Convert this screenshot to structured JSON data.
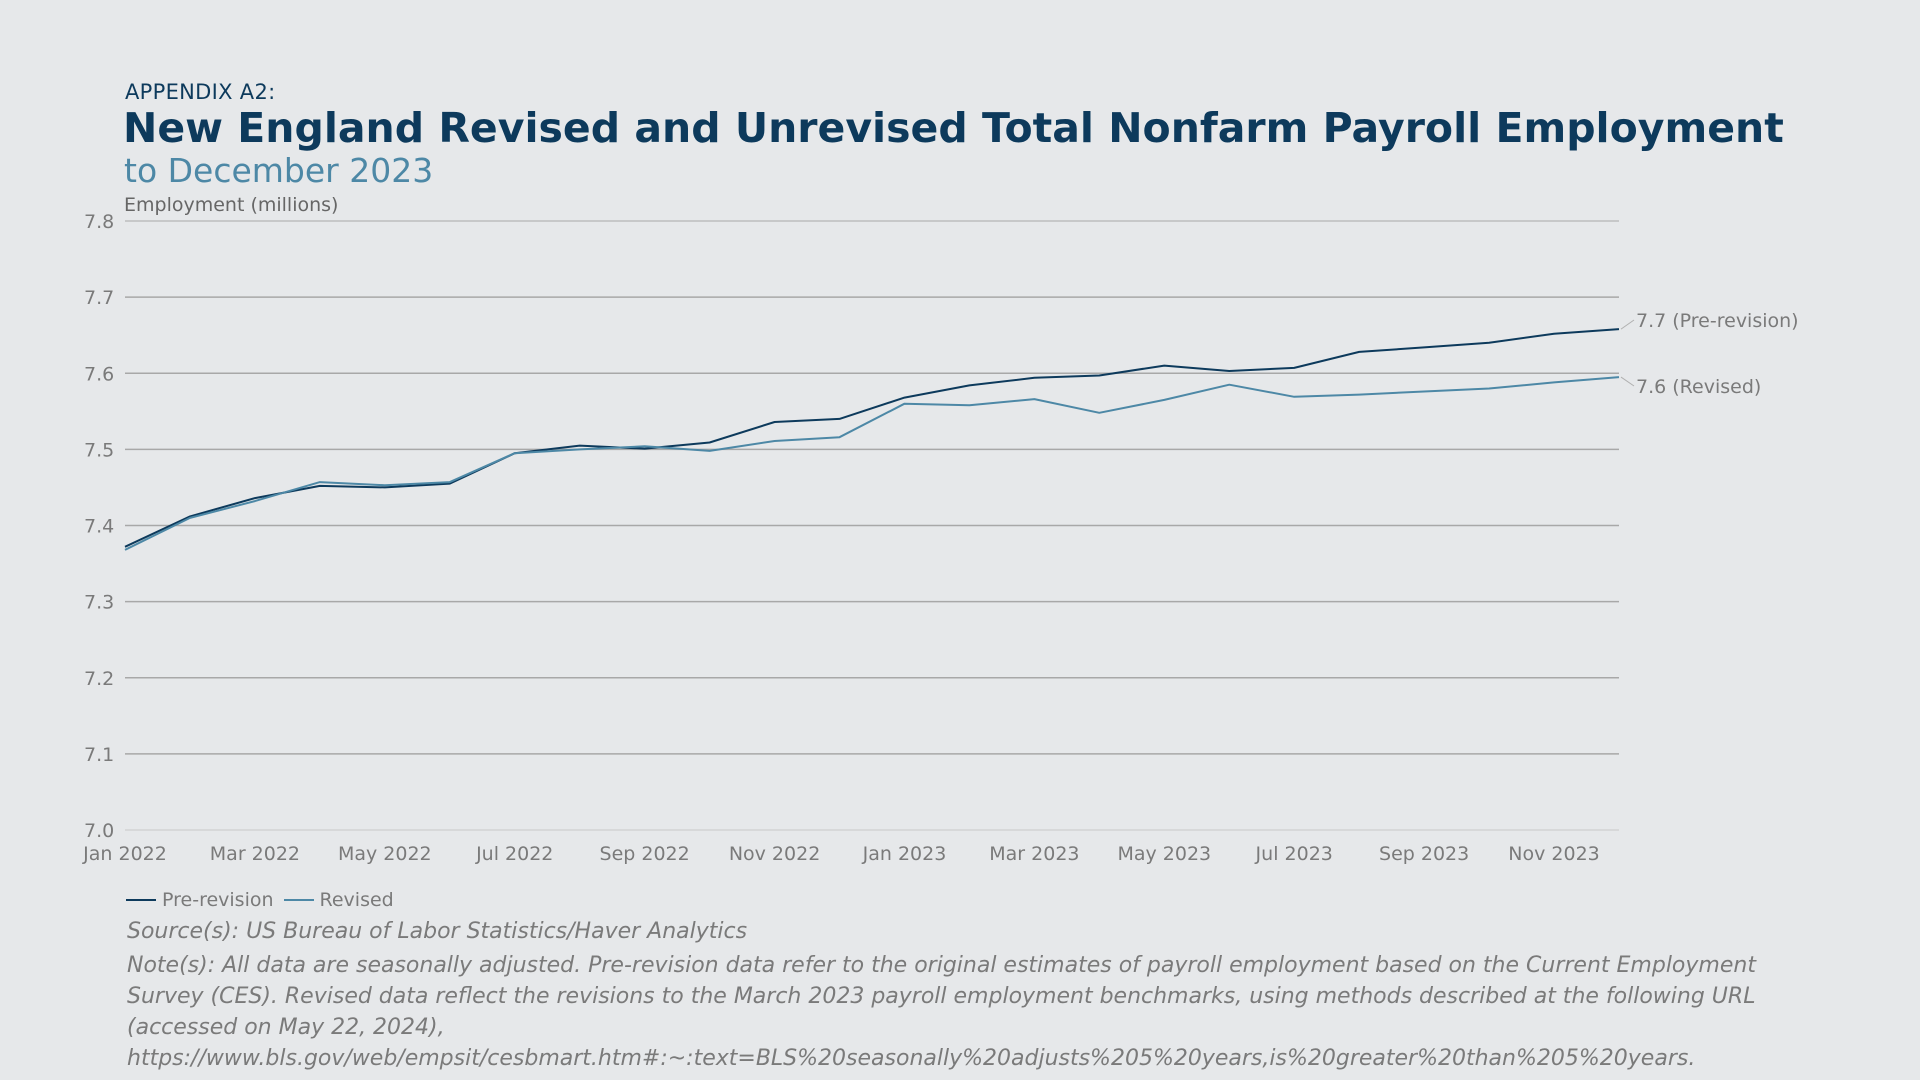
{
  "header": {
    "kicker": "APPENDIX A2:",
    "title": "New England Revised and Unrevised Total Nonfarm Payroll Employment",
    "subtitle": "to December 2023"
  },
  "colors": {
    "background": "#e6e8ea",
    "title": "#0d3a5c",
    "subtitle": "#4d88a6",
    "pre_revision": "#0d3a5c",
    "revised": "#4d88a6",
    "gridline": "#a8a8a8",
    "muted_text": "#7a7a7a"
  },
  "chart_data": {
    "type": "line",
    "title": "New England Revised and Unrevised Total Nonfarm Payroll Employment",
    "subtitle": "to December 2023",
    "ylabel": "Employment (millions)",
    "xlabel": "",
    "ylim": [
      7.0,
      7.8
    ],
    "yticks": [
      "7.0",
      "7.1",
      "7.2",
      "7.3",
      "7.4",
      "7.5",
      "7.6",
      "7.7",
      "7.8"
    ],
    "x": [
      "Jan 2022",
      "Feb 2022",
      "Mar 2022",
      "Apr 2022",
      "May 2022",
      "Jun 2022",
      "Jul 2022",
      "Aug 2022",
      "Sep 2022",
      "Oct 2022",
      "Nov 2022",
      "Dec 2022",
      "Jan 2023",
      "Feb 2023",
      "Mar 2023",
      "Apr 2023",
      "May 2023",
      "Jun 2023",
      "Jul 2023",
      "Aug 2023",
      "Sep 2023",
      "Oct 2023",
      "Nov 2023",
      "Dec 2023"
    ],
    "xticks": [
      "Jan 2022",
      "Mar 2022",
      "May 2022",
      "Jul 2022",
      "Sep 2022",
      "Nov 2022",
      "Jan 2023",
      "Mar 2023",
      "May 2023",
      "Jul 2023",
      "Sep 2023",
      "Nov 2023"
    ],
    "grid": true,
    "legend_position": "bottom-left",
    "series": [
      {
        "name": "Pre-revision",
        "color": "#0d3a5c",
        "values": [
          7.372,
          7.412,
          7.436,
          7.452,
          7.45,
          7.455,
          7.495,
          7.505,
          7.501,
          7.509,
          7.536,
          7.54,
          7.568,
          7.584,
          7.594,
          7.597,
          7.61,
          7.603,
          7.607,
          7.628,
          7.634,
          7.64,
          7.652,
          7.658
        ],
        "end_label": "7.7 (Pre-revision)"
      },
      {
        "name": "Revised",
        "color": "#4d88a6",
        "values": [
          7.368,
          7.41,
          7.432,
          7.457,
          7.453,
          7.457,
          7.495,
          7.5,
          7.504,
          7.498,
          7.511,
          7.516,
          7.56,
          7.558,
          7.566,
          7.548,
          7.565,
          7.585,
          7.569,
          7.572,
          7.576,
          7.58,
          7.588,
          7.595
        ],
        "end_label": "7.6 (Revised)"
      }
    ]
  },
  "legend": {
    "items": [
      {
        "label": "Pre-revision",
        "color": "#0d3a5c"
      },
      {
        "label": "Revised",
        "color": "#4d88a6"
      }
    ]
  },
  "footer": {
    "source": "Source(s): US Bureau of Labor Statistics/Haver Analytics",
    "note": "Note(s): All data are seasonally adjusted. Pre-revision data refer to the original estimates of payroll employment based on the Current Employment Survey (CES). Revised data reflect the revisions to the March 2023 payroll employment benchmarks, using methods described at the following URL (accessed on May 22, 2024), https://www.bls.gov/web/empsit/cesbmart.htm#:~:text=BLS%20seasonally%20adjusts%205%20years,is%20greater%20than%205%20years."
  }
}
